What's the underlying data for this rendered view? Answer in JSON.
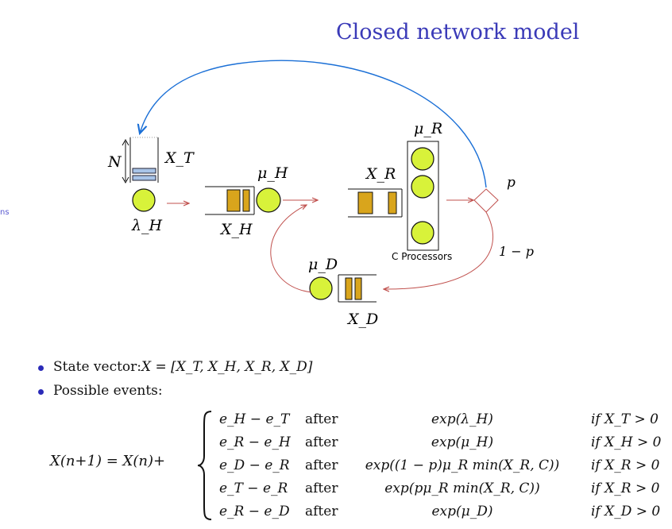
{
  "slide": {
    "title": "Closed network model",
    "side_tag": "ns"
  },
  "diagram": {
    "labels": {
      "N": "N",
      "X_T": "X_T",
      "lambda_H": "λ_H",
      "mu_H": "μ_H",
      "X_H": "X_H",
      "X_R": "X_R",
      "mu_R": "μ_R",
      "c_processors": "C Processors",
      "p": "p",
      "one_minus_p": "1 − p",
      "mu_D": "μ_D",
      "X_D": "X_D"
    },
    "colors": {
      "queue_block": "#d9a51c",
      "server": "#d8f23a",
      "buffer": "#a8c4e8",
      "feedback_arrow": "#1a6fd6",
      "flow_arrow": "#c0504d"
    }
  },
  "bullets": [
    {
      "lead": "State vector: ",
      "math": "X = [X_T, X_H, X_R, X_D]"
    },
    {
      "lead": "Possible events:",
      "math": ""
    }
  ],
  "equation": {
    "lhs": "X(n+1) = X(n)+",
    "rows": [
      {
        "transition": "e_H − e_T",
        "after": "after",
        "rate": "exp(λ_H)",
        "condition": "if X_T > 0"
      },
      {
        "transition": "e_R − e_H",
        "after": "after",
        "rate": "exp(μ_H)",
        "condition": "if X_H > 0"
      },
      {
        "transition": "e_D − e_R",
        "after": "after",
        "rate": "exp((1 − p)μ_R min(X_R, C))",
        "condition": "if X_R > 0"
      },
      {
        "transition": "e_T − e_R",
        "after": "after",
        "rate": "exp(pμ_R min(X_R, C))",
        "condition": "if X_R > 0"
      },
      {
        "transition": "e_R − e_D",
        "after": "after",
        "rate": "exp(μ_D)",
        "condition": "if X_D > 0"
      }
    ]
  }
}
